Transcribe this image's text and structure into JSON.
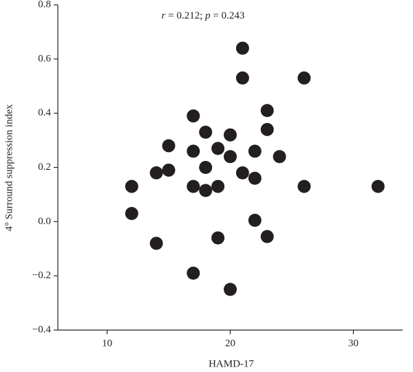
{
  "chart_data": {
    "type": "scatter",
    "annotation": [
      "r",
      " = 0.212; ",
      "p",
      " = 0.243"
    ],
    "x_label": "HAMD-17",
    "y_label": "4° Surround suppression index",
    "color": "#231f20",
    "x": [
      21,
      21,
      26,
      23,
      23,
      17,
      18,
      20,
      15,
      17,
      19,
      22,
      20,
      24,
      15,
      14,
      18,
      21,
      22,
      12,
      17,
      18,
      19,
      26,
      32,
      12,
      22,
      14,
      19,
      23,
      17,
      20
    ],
    "y": [
      0.64,
      0.53,
      0.53,
      0.41,
      0.34,
      0.39,
      0.33,
      0.32,
      0.28,
      0.26,
      0.27,
      0.26,
      0.24,
      0.24,
      0.19,
      0.18,
      0.2,
      0.18,
      0.16,
      0.13,
      0.13,
      0.115,
      0.13,
      0.13,
      0.13,
      0.03,
      0.005,
      -0.08,
      -0.06,
      -0.055,
      -0.19,
      -0.25
    ],
    "xlim": [
      6,
      34
    ],
    "xticks": [
      10,
      20,
      30
    ],
    "ylim": [
      -0.4,
      0.8
    ],
    "yticks": [
      {
        "value": -0.4,
        "label": "−0.4"
      },
      {
        "value": -0.2,
        "label": "−0.2"
      },
      {
        "value": 0,
        "label": "0.0"
      },
      0.2,
      0.4,
      0.6,
      0.8
    ]
  }
}
